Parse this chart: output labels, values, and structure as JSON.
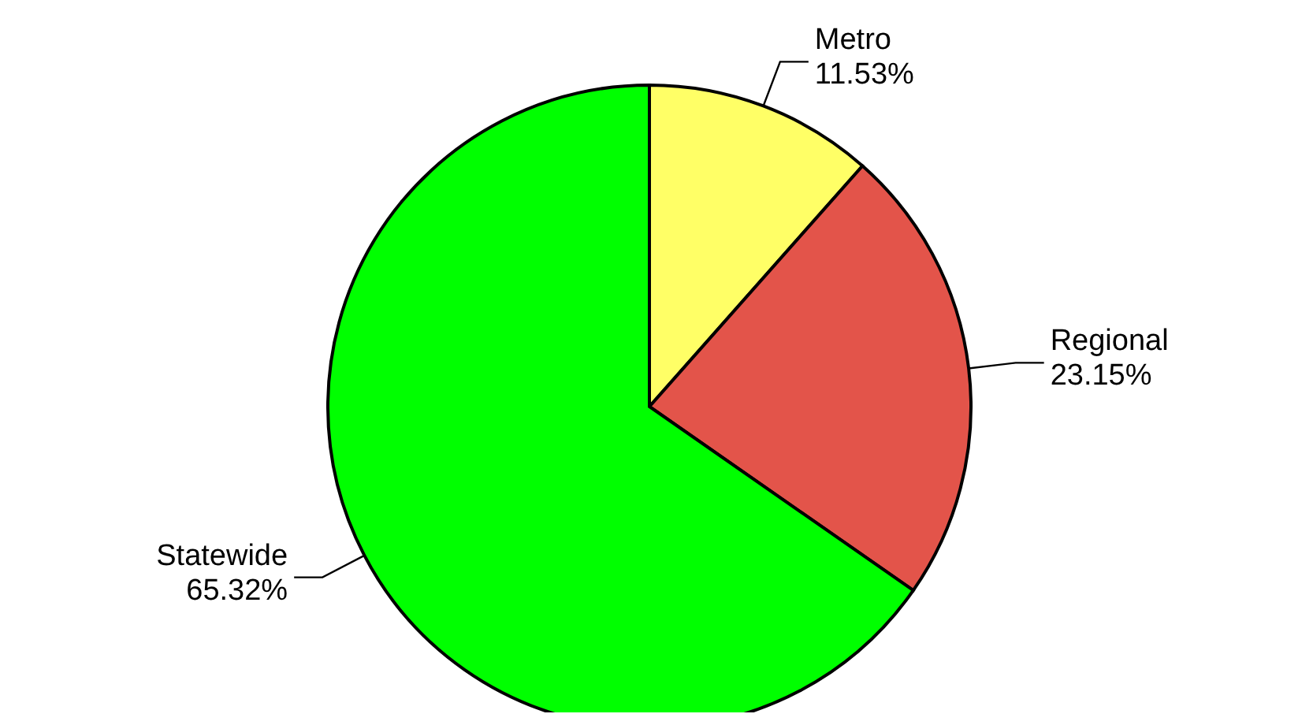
{
  "chart_data": {
    "type": "pie",
    "categories": [
      "Metro",
      "Regional",
      "Statewide"
    ],
    "values": [
      11.53,
      23.15,
      65.32
    ],
    "colors": [
      "#ffff66",
      "#e3544a",
      "#00ff00"
    ],
    "value_labels": [
      "11.53%",
      "23.15%",
      "65.32%"
    ],
    "legend": false
  }
}
